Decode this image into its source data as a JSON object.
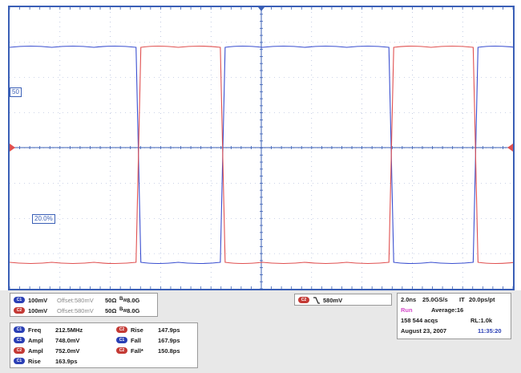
{
  "colors": {
    "ch1": "#3a4fd0",
    "ch2": "#e05050",
    "frame": "#3a5fb6",
    "grid": "#9aa8d0"
  },
  "screen": {
    "ch1_ref_label": "50",
    "ch2_ref_label": "20.0%",
    "ch1_pattern": [
      1,
      1,
      1,
      0,
      0,
      1,
      1,
      1,
      1,
      0,
      0,
      1
    ],
    "ch2_pattern": [
      0,
      0,
      0,
      1,
      1,
      0,
      0,
      0,
      0,
      1,
      1,
      0
    ],
    "ch1_rise_label": "C1",
    "ch2_label": "C2"
  },
  "channels": [
    {
      "badge": "C1",
      "scale": "100mV",
      "offset": "Offset:580mV",
      "impedance": "50Ω",
      "bw": "8.0G"
    },
    {
      "badge": "C2",
      "scale": "100mV",
      "offset": "Offset:580mV",
      "impedance": "50Ω",
      "bw": "8.0G"
    }
  ],
  "trigger": {
    "badge": "C2",
    "level": "580mV"
  },
  "measurements_left": [
    {
      "badge": "C1",
      "name": "Freq",
      "value": "212.5MHz"
    },
    {
      "badge": "C1",
      "name": "Ampl",
      "value": "748.0mV"
    },
    {
      "badge": "C2",
      "name": "Ampl",
      "value": "752.0mV"
    },
    {
      "badge": "C1",
      "name": "Rise",
      "value": "163.9ps"
    }
  ],
  "measurements_right": [
    {
      "badge": "C2",
      "name": "Rise",
      "value": "147.9ps"
    },
    {
      "badge": "C1",
      "name": "Fall",
      "value": "167.9ps"
    },
    {
      "badge": "C2",
      "name": "Fall*",
      "value": "150.8ps"
    }
  ],
  "acquisition": {
    "timebase": "2.0ns",
    "sample_rate": "25.0GS/s",
    "mode": "IT",
    "resolution": "20.0ps/pt",
    "state": "Run",
    "average": "Average:16",
    "acqs": "158 544 acqs",
    "record_length": "RL:1.0k",
    "date": "August 23, 2007",
    "time": "11:35:20"
  }
}
